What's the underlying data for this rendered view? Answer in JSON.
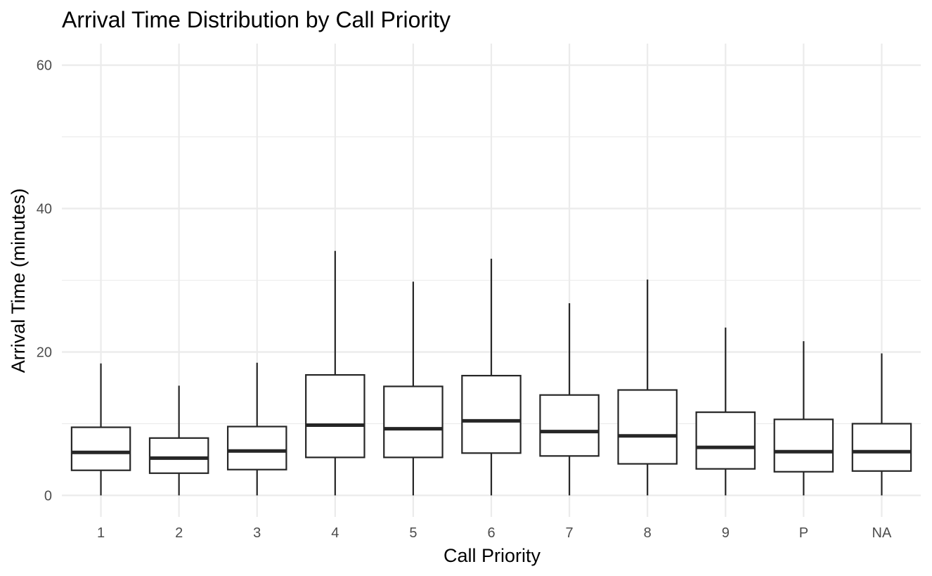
{
  "chart_data": {
    "type": "boxplot",
    "title": "Arrival Time Distribution by Call Priority",
    "xlabel": "Call Priority",
    "ylabel": "Arrival Time (minutes)",
    "ylim": [
      -3,
      63
    ],
    "yticks": [
      0,
      20,
      40,
      60
    ],
    "grid": true,
    "categories": [
      "1",
      "2",
      "3",
      "4",
      "5",
      "6",
      "7",
      "8",
      "9",
      "P",
      "NA"
    ],
    "series": [
      {
        "category": "1",
        "min": 0,
        "q1": 3.5,
        "median": 6.0,
        "q3": 9.5,
        "max": 18.4
      },
      {
        "category": "2",
        "min": 0,
        "q1": 3.1,
        "median": 5.2,
        "q3": 8.0,
        "max": 15.3
      },
      {
        "category": "3",
        "min": 0,
        "q1": 3.6,
        "median": 6.2,
        "q3": 9.6,
        "max": 18.5
      },
      {
        "category": "4",
        "min": 0,
        "q1": 5.3,
        "median": 9.8,
        "q3": 16.8,
        "max": 34.1
      },
      {
        "category": "5",
        "min": 0,
        "q1": 5.3,
        "median": 9.3,
        "q3": 15.2,
        "max": 29.8
      },
      {
        "category": "6",
        "min": 0,
        "q1": 5.9,
        "median": 10.4,
        "q3": 16.7,
        "max": 33.0
      },
      {
        "category": "7",
        "min": 0,
        "q1": 5.5,
        "median": 8.9,
        "q3": 14.0,
        "max": 26.8
      },
      {
        "category": "8",
        "min": 0,
        "q1": 4.4,
        "median": 8.3,
        "q3": 14.7,
        "max": 30.1
      },
      {
        "category": "9",
        "min": 0,
        "q1": 3.7,
        "median": 6.7,
        "q3": 11.6,
        "max": 23.4
      },
      {
        "category": "P",
        "min": 0,
        "q1": 3.3,
        "median": 6.1,
        "q3": 10.6,
        "max": 21.5
      },
      {
        "category": "NA",
        "min": 0,
        "q1": 3.4,
        "median": 6.1,
        "q3": 10.0,
        "max": 19.8
      }
    ]
  }
}
